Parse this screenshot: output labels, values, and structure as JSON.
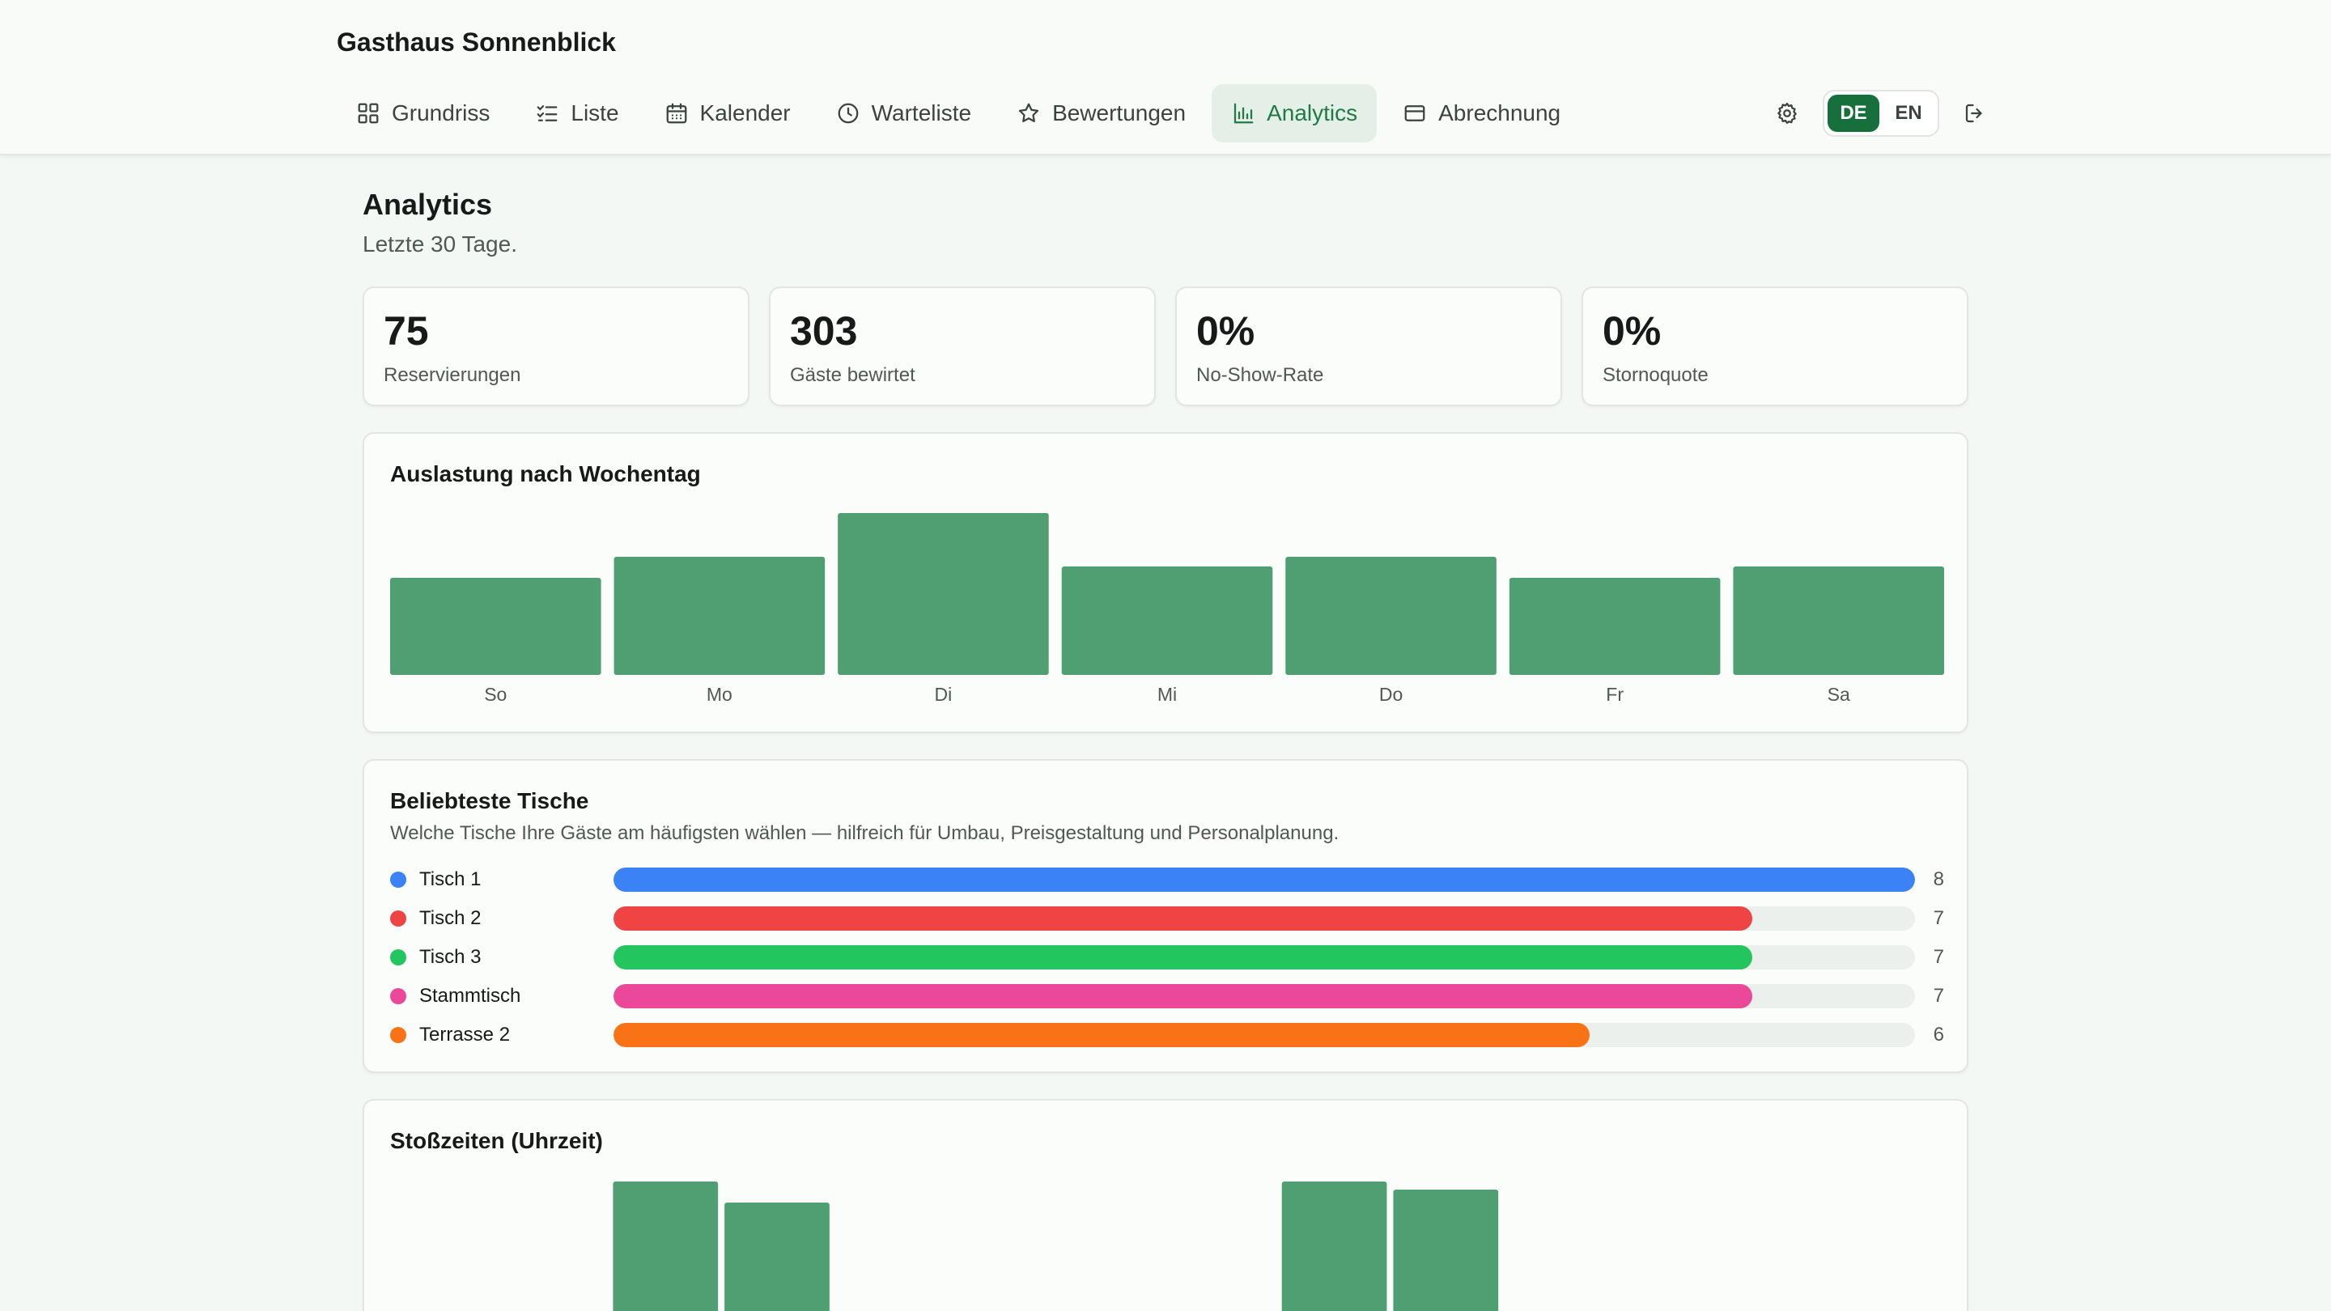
{
  "app": {
    "title": "Gasthaus Sonnenblick"
  },
  "nav": {
    "items": [
      {
        "label": "Grundriss",
        "icon": "grid-icon",
        "active": false
      },
      {
        "label": "Liste",
        "icon": "checklist-icon",
        "active": false
      },
      {
        "label": "Kalender",
        "icon": "calendar-icon",
        "active": false
      },
      {
        "label": "Warteliste",
        "icon": "clock-icon",
        "active": false
      },
      {
        "label": "Bewertungen",
        "icon": "star-icon",
        "active": false
      },
      {
        "label": "Analytics",
        "icon": "bar-chart-icon",
        "active": true
      },
      {
        "label": "Abrechnung",
        "icon": "credit-card-icon",
        "active": false
      }
    ],
    "settings_icon": "gear-icon",
    "languages": [
      {
        "label": "DE",
        "active": true
      },
      {
        "label": "EN",
        "active": false
      }
    ],
    "logout_icon": "logout-icon"
  },
  "page": {
    "title": "Analytics",
    "subtitle": "Letzte 30 Tage."
  },
  "kpis": [
    {
      "value": "75",
      "label": "Reservierungen"
    },
    {
      "value": "303",
      "label": "Gäste bewirtet"
    },
    {
      "value": "0%",
      "label": "No-Show-Rate"
    },
    {
      "value": "0%",
      "label": "Stornoquote"
    }
  ],
  "colors": {
    "accent": "#17703c",
    "bar": "#4f9f73",
    "track": "#ecf0ed"
  },
  "weekday_chart": {
    "title": "Auslastung nach Wochentag"
  },
  "popular_tables": {
    "title": "Beliebteste Tische",
    "description": "Welche Tische Ihre Gäste am häufigsten wählen — hilfreich für Umbau, Preisgestaltung und Personalplanung.",
    "max": 8,
    "items": [
      {
        "name": "Tisch 1",
        "count": 8,
        "color": "#3b82f6"
      },
      {
        "name": "Tisch 2",
        "count": 7,
        "color": "#ef4444"
      },
      {
        "name": "Tisch 3",
        "count": 7,
        "color": "#22c55e"
      },
      {
        "name": "Stammtisch",
        "count": 7,
        "color": "#ec4899"
      },
      {
        "name": "Terrasse 2",
        "count": 6,
        "color": "#f97316"
      }
    ]
  },
  "peak_chart": {
    "title": "Stoßzeiten (Uhrzeit)"
  },
  "chart_data": [
    {
      "type": "bar",
      "title": "Auslastung nach Wochentag",
      "categories": [
        "So",
        "Mo",
        "Di",
        "Mi",
        "Do",
        "Fr",
        "Sa"
      ],
      "values": [
        60,
        73,
        100,
        67,
        73,
        60,
        67
      ],
      "ylim": [
        0,
        100
      ],
      "grid": false,
      "legend": "none"
    },
    {
      "type": "bar",
      "title": "Stoßzeiten (Uhrzeit)",
      "values": [
        0,
        0,
        100,
        87,
        0,
        0,
        0,
        8,
        100,
        95,
        8,
        0,
        0,
        0
      ],
      "ylim": [
        0,
        100
      ],
      "grid": false,
      "legend": "none",
      "note_truncated": true
    }
  ]
}
